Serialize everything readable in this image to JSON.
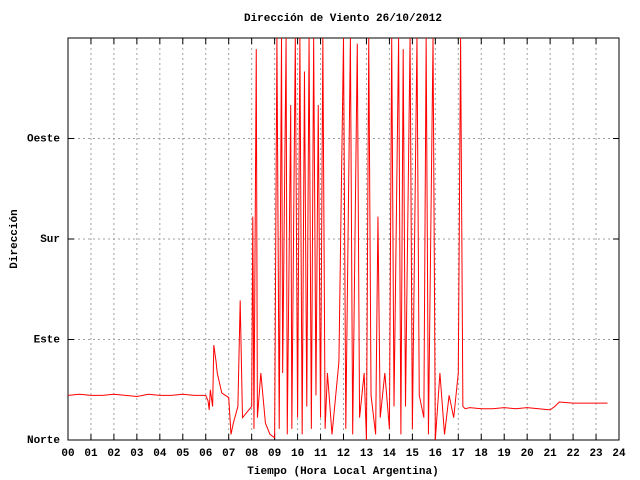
{
  "chart_data": {
    "type": "line",
    "title": "Dirección de Viento 26/10/2012",
    "xlabel": "Tiempo (Hora Local Argentina)",
    "ylabel": "Dirección",
    "xlim": [
      0,
      24
    ],
    "ylim": [
      0,
      360
    ],
    "grid": true,
    "xticks": [
      {
        "value": 0,
        "label": "00"
      },
      {
        "value": 1,
        "label": "01"
      },
      {
        "value": 2,
        "label": "02"
      },
      {
        "value": 3,
        "label": "03"
      },
      {
        "value": 4,
        "label": "04"
      },
      {
        "value": 5,
        "label": "05"
      },
      {
        "value": 6,
        "label": "06"
      },
      {
        "value": 7,
        "label": "07"
      },
      {
        "value": 8,
        "label": "08"
      },
      {
        "value": 9,
        "label": "09"
      },
      10,
      11,
      12,
      13,
      14,
      15,
      16,
      17,
      18,
      19,
      20,
      21,
      22,
      23,
      24
    ],
    "yticks": [
      {
        "value": 0,
        "label": "Norte"
      },
      {
        "value": 90,
        "label": "Este"
      },
      {
        "value": 180,
        "label": "Sur"
      },
      {
        "value": 270,
        "label": "Oeste"
      }
    ],
    "x": [
      0,
      0.5,
      1,
      1.5,
      2,
      2.5,
      3,
      3.5,
      4,
      4.5,
      5,
      5.5,
      6,
      6.1,
      6.15,
      6.2,
      6.3,
      6.35,
      6.45,
      6.5,
      6.7,
      7,
      7.1,
      7.2,
      7.4,
      7.5,
      7.6,
      7.8,
      8,
      8.05,
      8.1,
      8.2,
      8.25,
      8.4,
      8.6,
      8.8,
      9,
      9.1,
      9.2,
      9.3,
      9.35,
      9.5,
      9.55,
      9.7,
      9.75,
      9.9,
      10,
      10.1,
      10.2,
      10.3,
      10.4,
      10.5,
      10.6,
      10.7,
      10.8,
      10.9,
      11,
      11.1,
      11.2,
      11.3,
      11.5,
      11.8,
      12,
      12.1,
      12.3,
      12.4,
      12.6,
      12.7,
      12.9,
      13,
      13.1,
      13.2,
      13.4,
      13.5,
      13.6,
      13.8,
      14,
      14.1,
      14.2,
      14.4,
      14.5,
      14.6,
      14.7,
      14.9,
      15,
      15.2,
      15.3,
      15.5,
      15.6,
      15.7,
      15.9,
      16,
      16.2,
      16.4,
      16.6,
      16.8,
      17,
      17.1,
      17.2,
      17.3,
      17.5,
      18,
      18.5,
      19,
      19.5,
      20,
      20.5,
      21,
      21.2,
      21.4,
      22,
      22.5,
      23,
      23.5
    ],
    "series": [
      {
        "color": "#ff0000",
        "values": [
          40,
          41,
          40,
          40,
          41,
          40,
          39,
          41,
          40,
          40,
          41,
          40,
          40,
          35,
          27,
          45,
          30,
          85,
          70,
          60,
          42,
          38,
          5,
          15,
          30,
          125,
          20,
          25,
          30,
          200,
          10,
          350,
          20,
          60,
          15,
          5,
          2,
          360,
          10,
          360,
          60,
          360,
          5,
          300,
          10,
          360,
          20,
          360,
          5,
          330,
          30,
          360,
          10,
          360,
          40,
          300,
          20,
          360,
          10,
          60,
          5,
          70,
          360,
          10,
          360,
          5,
          355,
          20,
          60,
          0,
          360,
          40,
          5,
          200,
          20,
          60,
          10,
          360,
          30,
          360,
          5,
          350,
          30,
          360,
          10,
          360,
          40,
          20,
          360,
          5,
          360,
          0,
          60,
          5,
          40,
          20,
          60,
          360,
          30,
          28,
          29,
          28,
          28,
          29,
          28,
          29,
          28,
          27,
          30,
          34,
          33,
          33,
          33,
          33
        ]
      }
    ]
  }
}
